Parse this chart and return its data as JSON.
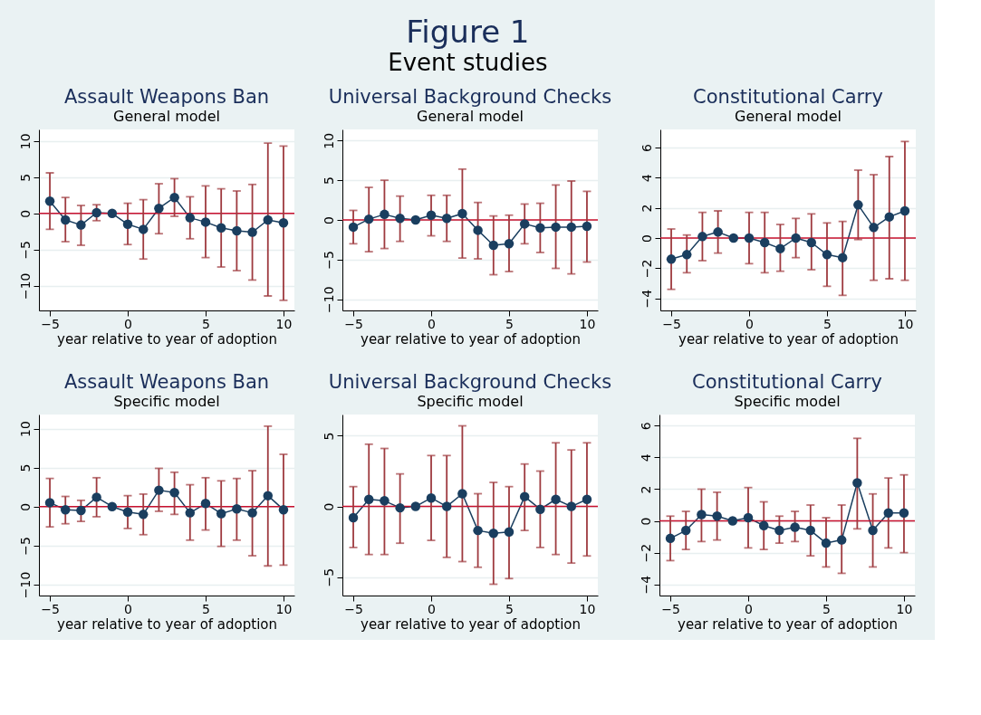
{
  "chart_data": [
    {
      "type": "line",
      "annotations": [
        "Figure 1",
        "Event studies"
      ],
      "title": "Assault Weapons Ban",
      "subtitle": "General model",
      "xlabel": "year relative to year of adoption",
      "x": [
        -5,
        -4,
        -3,
        -2,
        -1,
        0,
        1,
        2,
        3,
        4,
        5,
        6,
        7,
        8,
        9,
        10
      ],
      "xlim": [
        -5.7,
        10.7
      ],
      "xticks": [
        -5,
        0,
        5,
        10
      ],
      "ylim": [
        -13.4,
        11.6
      ],
      "yticks": [
        -10,
        -5,
        0,
        5,
        10
      ],
      "grid": "y",
      "marker": "circle",
      "ref_lines": [
        {
          "axis": "y",
          "value": 0,
          "color": "#c8102e"
        }
      ],
      "series": [
        {
          "color": "#1a3e5f",
          "values": [
            1.7,
            -0.9,
            -1.6,
            0.1,
            0,
            -1.5,
            -2.2,
            0.7,
            2.2,
            -0.6,
            -1.2,
            -2.0,
            -2.4,
            -2.6,
            -0.9,
            -1.3
          ],
          "errors": [
            [
              -2.2,
              5.6
            ],
            [
              -3.9,
              2.2
            ],
            [
              -4.4,
              1.1
            ],
            [
              -1.0,
              1.2
            ],
            null,
            [
              -4.3,
              1.4
            ],
            [
              -6.3,
              1.9
            ],
            [
              -2.8,
              4.1
            ],
            [
              -0.4,
              4.8
            ],
            [
              -3.5,
              2.3
            ],
            [
              -6.1,
              3.8
            ],
            [
              -7.4,
              3.4
            ],
            [
              -7.9,
              3.1
            ],
            [
              -9.2,
              4.0
            ],
            [
              -11.4,
              9.7
            ],
            [
              -12.0,
              9.3
            ]
          ]
        }
      ]
    },
    {
      "type": "line",
      "title": "Universal Background Checks",
      "subtitle": "General model",
      "xlabel": "year relative to year of adoption",
      "x": [
        -5,
        -4,
        -3,
        -2,
        -1,
        0,
        1,
        2,
        3,
        4,
        5,
        6,
        7,
        8,
        9,
        10
      ],
      "xlim": [
        -5.7,
        10.7
      ],
      "xticks": [
        -5,
        0,
        5,
        10
      ],
      "ylim": [
        -11.4,
        11.4
      ],
      "yticks": [
        -10,
        -5,
        0,
        5,
        10
      ],
      "grid": "y",
      "marker": "circle",
      "ref_lines": [
        {
          "axis": "y",
          "value": 0,
          "color": "#c8102e"
        }
      ],
      "series": [
        {
          "color": "#1a3e5f",
          "values": [
            -0.9,
            0.1,
            0.7,
            0.2,
            0,
            0.6,
            0.2,
            0.8,
            -1.3,
            -3.2,
            -3.0,
            -0.5,
            -1.0,
            -0.9,
            -0.9,
            -0.8
          ],
          "errors": [
            [
              -3.0,
              1.2
            ],
            [
              -4.0,
              4.1
            ],
            [
              -3.6,
              5.0
            ],
            [
              -2.7,
              3.0
            ],
            null,
            [
              -2.0,
              3.1
            ],
            [
              -2.7,
              3.1
            ],
            [
              -4.8,
              6.4
            ],
            [
              -4.9,
              2.2
            ],
            [
              -6.9,
              0.5
            ],
            [
              -6.5,
              0.6
            ],
            [
              -3.0,
              2.0
            ],
            [
              -4.1,
              2.1
            ],
            [
              -6.1,
              4.4
            ],
            [
              -6.8,
              4.9
            ],
            [
              -5.3,
              3.6
            ]
          ]
        }
      ]
    },
    {
      "type": "line",
      "title": "Constitutional Carry",
      "subtitle": "General model",
      "xlabel": "year relative to year of adoption",
      "x": [
        -5,
        -4,
        -3,
        -2,
        -1,
        0,
        1,
        2,
        3,
        4,
        5,
        6,
        7,
        8,
        9,
        10
      ],
      "xlim": [
        -5.7,
        10.7
      ],
      "xticks": [
        -5,
        0,
        5,
        10
      ],
      "ylim": [
        -4.8,
        7.2
      ],
      "yticks": [
        -4,
        -2,
        0,
        2,
        4,
        6
      ],
      "grid": "y",
      "marker": "circle",
      "ref_lines": [
        {
          "axis": "y",
          "value": 0,
          "color": "#c8102e"
        }
      ],
      "series": [
        {
          "color": "#1a3e5f",
          "values": [
            -1.4,
            -1.1,
            0.1,
            0.4,
            0,
            0,
            -0.3,
            -0.7,
            0,
            -0.3,
            -1.1,
            -1.3,
            2.2,
            0.7,
            1.4,
            1.8
          ],
          "errors": [
            [
              -3.4,
              0.6
            ],
            [
              -2.3,
              0.2
            ],
            [
              -1.5,
              1.7
            ],
            [
              -1.0,
              1.8
            ],
            null,
            [
              -1.7,
              1.7
            ],
            [
              -2.3,
              1.7
            ],
            [
              -2.2,
              0.9
            ],
            [
              -1.3,
              1.3
            ],
            [
              -2.1,
              1.6
            ],
            [
              -3.2,
              1.0
            ],
            [
              -3.8,
              1.1
            ],
            [
              -0.1,
              4.5
            ],
            [
              -2.8,
              4.2
            ],
            [
              -2.7,
              5.4
            ],
            [
              -2.8,
              6.4
            ]
          ]
        }
      ]
    },
    {
      "type": "line",
      "title": "Assault Weapons Ban",
      "subtitle": "Specific model",
      "xlabel": "year relative to year of adoption",
      "x": [
        -5,
        -4,
        -3,
        -2,
        -1,
        0,
        1,
        2,
        3,
        4,
        5,
        6,
        7,
        8,
        9,
        10
      ],
      "xlim": [
        -5.7,
        10.7
      ],
      "xticks": [
        -5,
        0,
        5,
        10
      ],
      "ylim": [
        -11.4,
        11.8
      ],
      "yticks": [
        -10,
        -5,
        0,
        5,
        10
      ],
      "grid": "y",
      "marker": "circle",
      "ref_lines": [
        {
          "axis": "y",
          "value": 0,
          "color": "#c8102e"
        }
      ],
      "series": [
        {
          "color": "#1a3e5f",
          "values": [
            0.5,
            -0.4,
            -0.5,
            1.2,
            0,
            -0.7,
            -1.0,
            2.1,
            1.8,
            -0.8,
            0.4,
            -0.9,
            -0.3,
            -0.8,
            1.4,
            -0.4
          ],
          "errors": [
            [
              -2.6,
              3.6
            ],
            [
              -2.2,
              1.3
            ],
            [
              -1.9,
              0.8
            ],
            [
              -1.3,
              3.7
            ],
            null,
            [
              -2.8,
              1.4
            ],
            [
              -3.6,
              1.6
            ],
            [
              -0.6,
              4.9
            ],
            [
              -1.0,
              4.4
            ],
            [
              -4.3,
              2.8
            ],
            [
              -3.0,
              3.7
            ],
            [
              -5.1,
              3.3
            ],
            [
              -4.3,
              3.6
            ],
            [
              -6.3,
              4.6
            ],
            [
              -7.6,
              10.3
            ],
            [
              -7.5,
              6.7
            ]
          ]
        }
      ]
    },
    {
      "type": "line",
      "title": "Universal Background Checks",
      "subtitle": "Specific model",
      "xlabel": "year relative to year of adoption",
      "x": [
        -5,
        -4,
        -3,
        -2,
        -1,
        0,
        1,
        2,
        3,
        4,
        5,
        6,
        7,
        8,
        9,
        10
      ],
      "xlim": [
        -5.7,
        10.7
      ],
      "xticks": [
        -5,
        0,
        5,
        10
      ],
      "ylim": [
        -6.3,
        6.5
      ],
      "yticks": [
        -5,
        0,
        5
      ],
      "grid": "y",
      "marker": "circle",
      "ref_lines": [
        {
          "axis": "y",
          "value": 0,
          "color": "#c8102e"
        }
      ],
      "series": [
        {
          "color": "#1a3e5f",
          "values": [
            -0.8,
            0.5,
            0.4,
            -0.1,
            0,
            0.6,
            0,
            0.9,
            -1.7,
            -1.9,
            -1.8,
            0.7,
            -0.2,
            0.5,
            0,
            0.5
          ],
          "errors": [
            [
              -2.9,
              1.4
            ],
            [
              -3.4,
              4.4
            ],
            [
              -3.4,
              4.1
            ],
            [
              -2.6,
              2.3
            ],
            null,
            [
              -2.4,
              3.6
            ],
            [
              -3.6,
              3.6
            ],
            [
              -3.9,
              5.7
            ],
            [
              -4.3,
              0.9
            ],
            [
              -5.5,
              1.7
            ],
            [
              -5.1,
              1.4
            ],
            [
              -1.7,
              3.0
            ],
            [
              -2.9,
              2.5
            ],
            [
              -3.4,
              4.5
            ],
            [
              -4.0,
              4.0
            ],
            [
              -3.5,
              4.5
            ]
          ]
        }
      ]
    },
    {
      "type": "line",
      "title": "Constitutional Carry",
      "subtitle": "Specific model",
      "xlabel": "year relative to year of adoption",
      "x": [
        -5,
        -4,
        -3,
        -2,
        -1,
        0,
        1,
        2,
        3,
        4,
        5,
        6,
        7,
        8,
        9,
        10
      ],
      "xlim": [
        -5.7,
        10.7
      ],
      "xticks": [
        -5,
        0,
        5,
        10
      ],
      "ylim": [
        -4.7,
        6.7
      ],
      "yticks": [
        -4,
        -2,
        0,
        2,
        4,
        6
      ],
      "grid": "y",
      "marker": "circle",
      "ref_lines": [
        {
          "axis": "y",
          "value": 0,
          "color": "#c8102e"
        }
      ],
      "series": [
        {
          "color": "#1a3e5f",
          "values": [
            -1.1,
            -0.6,
            0.4,
            0.3,
            0,
            0.2,
            -0.3,
            -0.6,
            -0.4,
            -0.6,
            -1.4,
            -1.2,
            2.4,
            -0.6,
            0.5,
            0.5
          ],
          "errors": [
            [
              -2.5,
              0.3
            ],
            [
              -1.8,
              0.6
            ],
            [
              -1.3,
              2.0
            ],
            [
              -1.2,
              1.8
            ],
            null,
            [
              -1.7,
              2.1
            ],
            [
              -1.8,
              1.2
            ],
            [
              -1.4,
              0.3
            ],
            [
              -1.3,
              0.6
            ],
            [
              -2.2,
              1.0
            ],
            [
              -2.9,
              0.2
            ],
            [
              -3.3,
              1.0
            ],
            [
              -0.5,
              5.2
            ],
            [
              -2.9,
              1.7
            ],
            [
              -1.7,
              2.7
            ],
            [
              -2.0,
              2.9
            ]
          ]
        }
      ]
    }
  ]
}
